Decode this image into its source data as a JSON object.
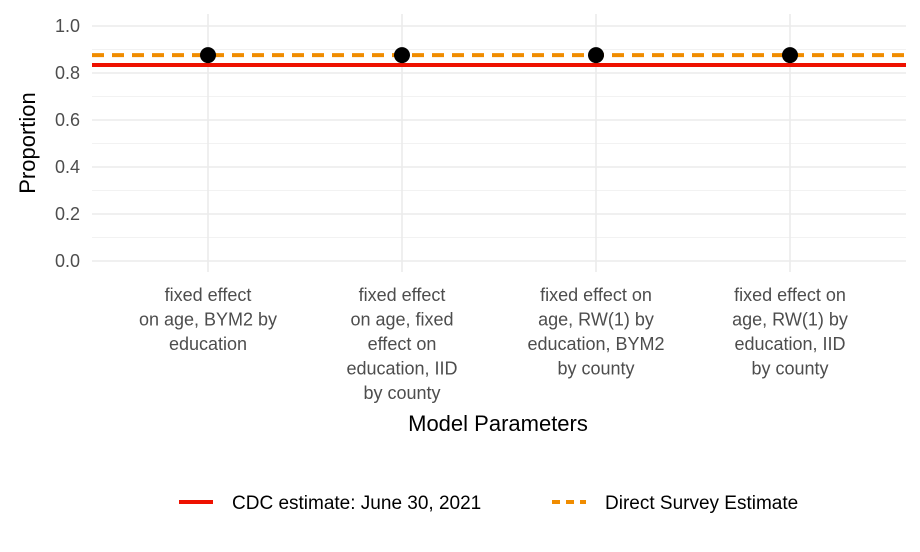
{
  "chart_data": {
    "type": "scatter",
    "xlabel": "Model Parameters",
    "ylabel": "Proportion",
    "ylim": [
      0,
      1.0
    ],
    "yticks": [
      0.0,
      0.2,
      0.4,
      0.6,
      0.8,
      1.0
    ],
    "ytick_labels": [
      "0.0",
      "0.2",
      "0.4",
      "0.6",
      "0.8",
      "1.0"
    ],
    "grid": true,
    "categories": [
      [
        "fixed effect",
        "on age, BYM2 by",
        "education"
      ],
      [
        "fixed effect",
        "on age, fixed",
        "effect on",
        "education, IID",
        "by county"
      ],
      [
        "fixed effect on",
        "age, RW(1) by",
        "education, BYM2",
        "by county"
      ],
      [
        "fixed effect on",
        "age, RW(1) by",
        "education, IID",
        "by county"
      ]
    ],
    "series": [
      {
        "values": [
          0.876,
          0.876,
          0.876,
          0.876
        ],
        "color": "#000000",
        "marker": "point"
      }
    ],
    "reference_lines": [
      {
        "name": "CDC estimate: June 30, 2021",
        "value": 0.834,
        "color": "#ee1100",
        "style": "solid"
      },
      {
        "name": "Direct Survey Estimate",
        "value": 0.876,
        "color": "#f08c00",
        "style": "dashed"
      }
    ],
    "legend_position": "bottom"
  }
}
